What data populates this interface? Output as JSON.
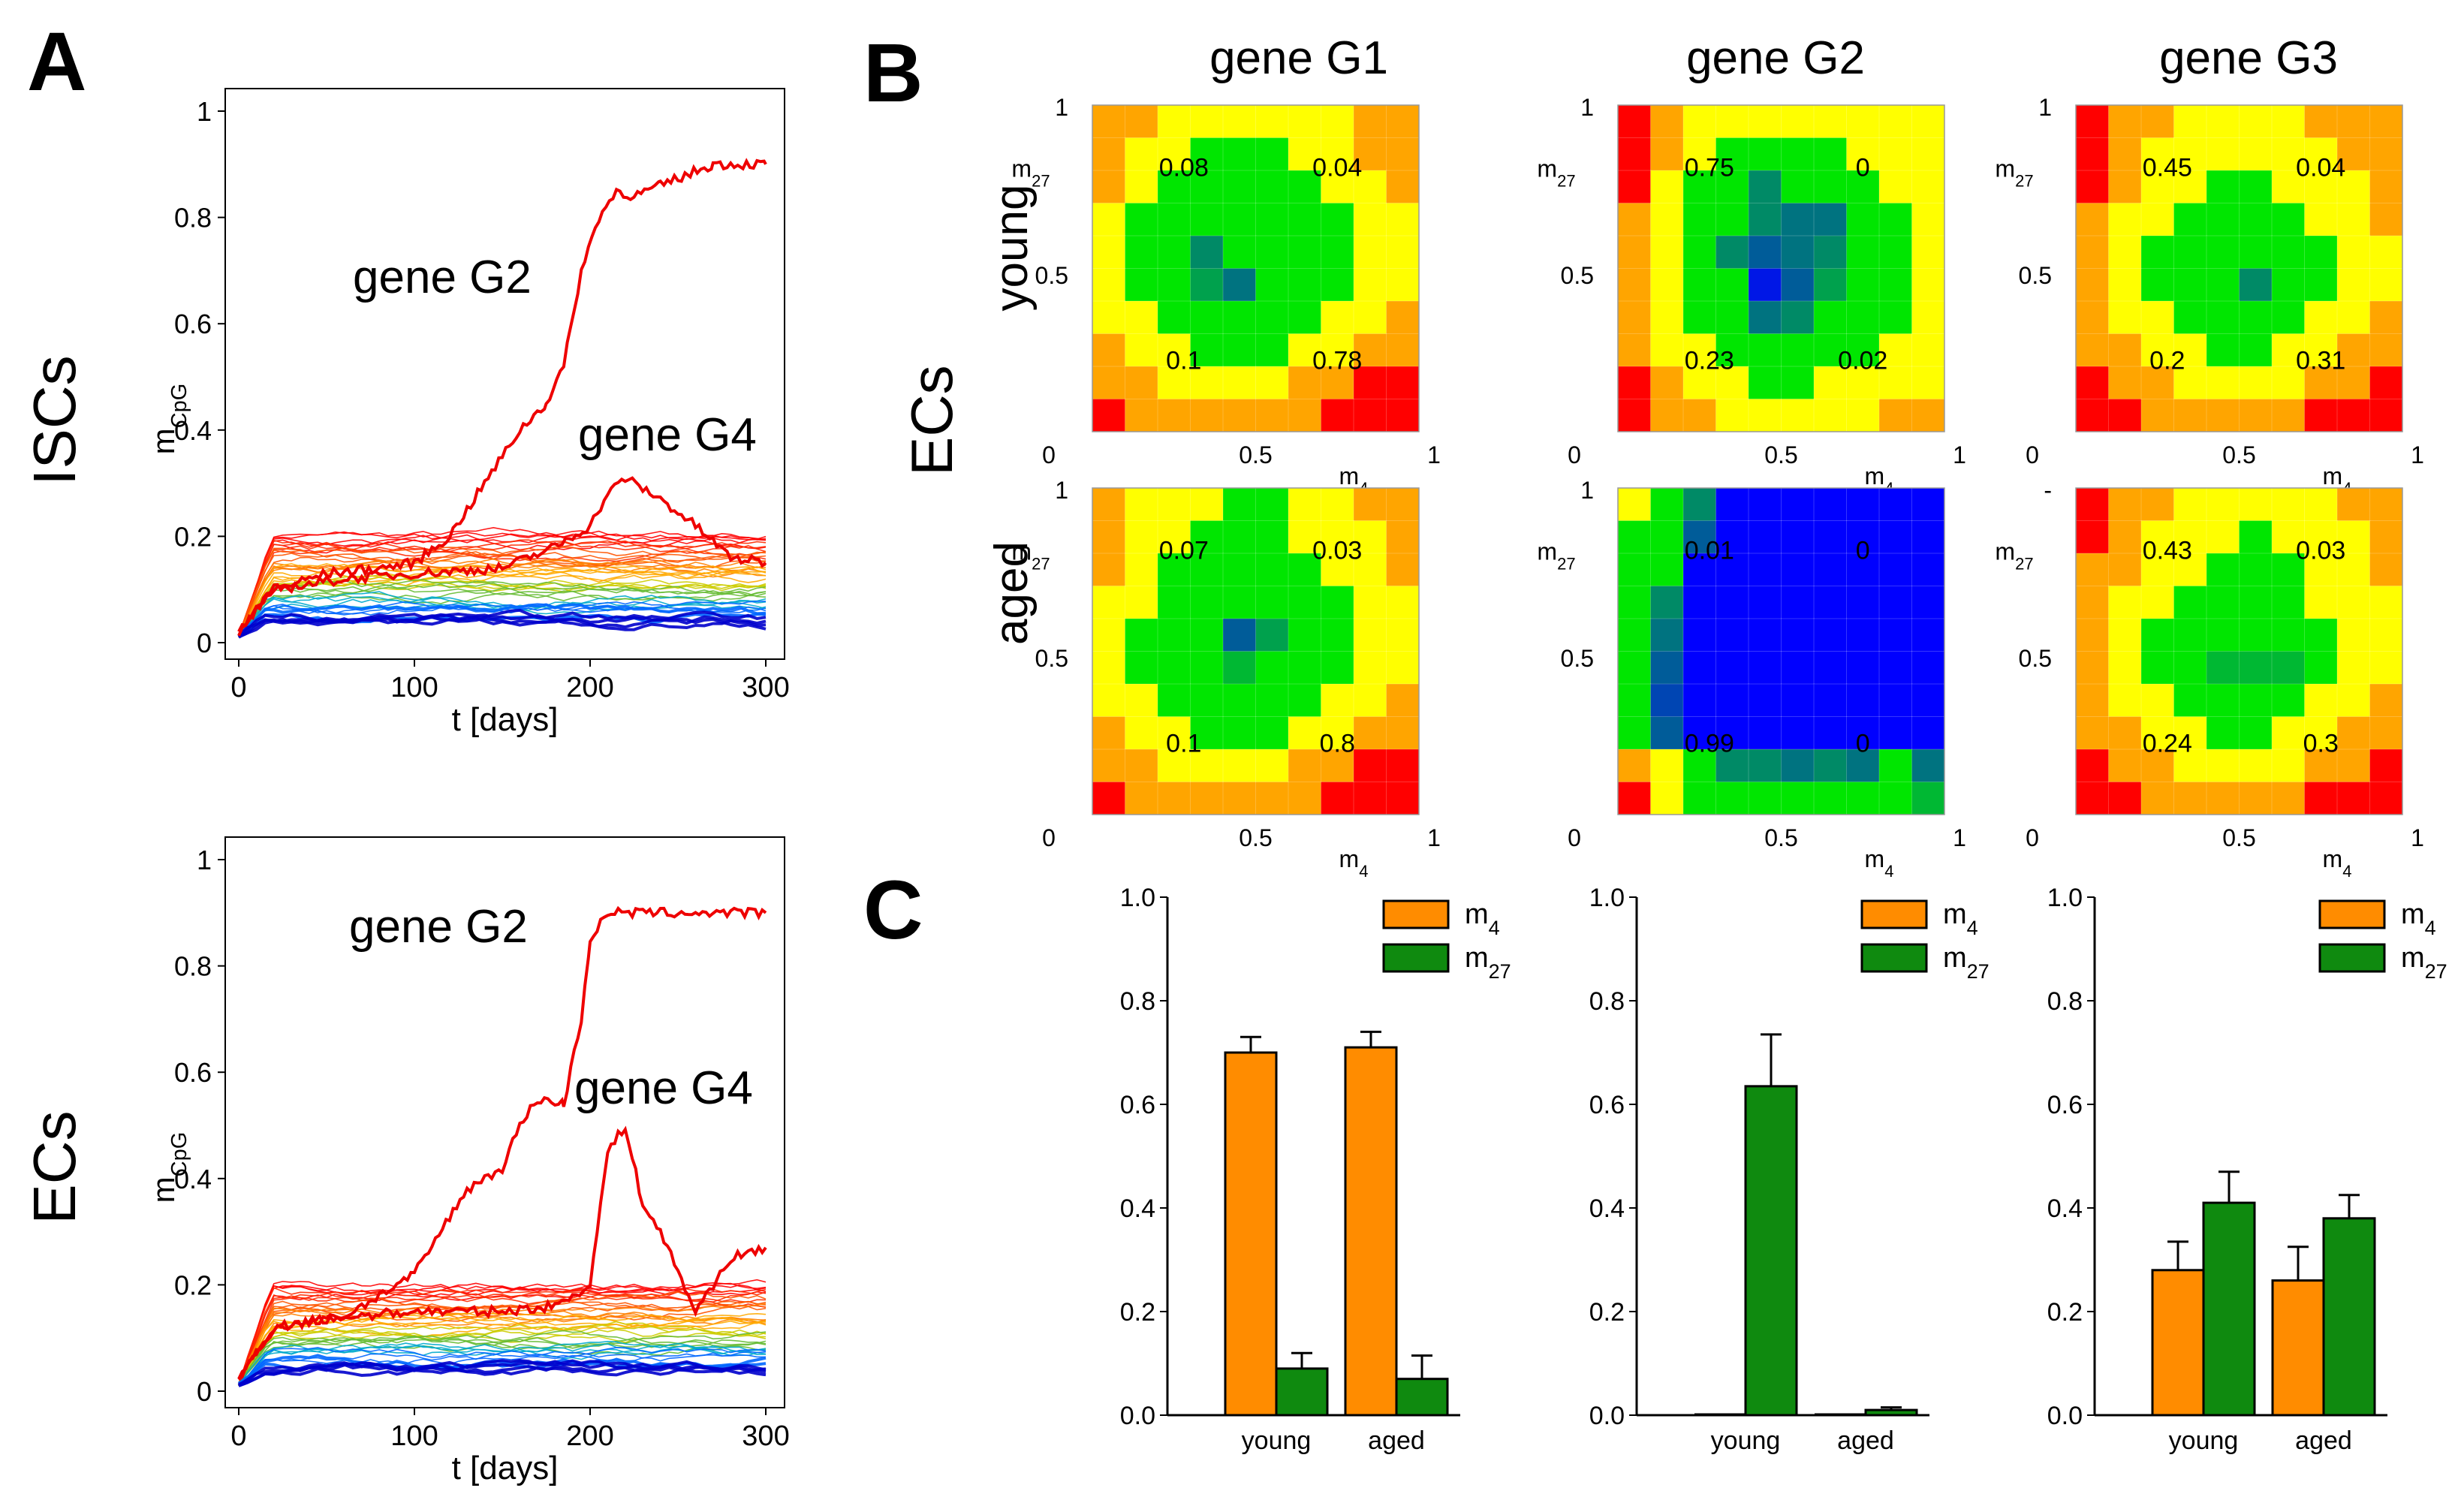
{
  "figure_labels": {
    "A": "A",
    "B": "B",
    "C": "C"
  },
  "panel_a": {
    "rows": [
      {
        "row_label": "ISCs",
        "ylabel": "m",
        "ylabel_sub": "CpG",
        "xlabel": "t [days]",
        "annotations": [
          "gene G2",
          "gene G4"
        ]
      },
      {
        "row_label": "ECs",
        "ylabel": "m",
        "ylabel_sub": "CpG",
        "xlabel": "t [days]",
        "annotations": [
          "gene G2",
          "gene G4"
        ]
      }
    ],
    "x_ticks": [
      "0",
      "100",
      "200",
      "300"
    ],
    "y_ticks": [
      "0",
      "0.2",
      "0.4",
      "0.6",
      "0.8",
      "1"
    ]
  },
  "panel_b": {
    "row_group_label": "ECs",
    "columns": [
      "gene G1",
      "gene G2",
      "gene G3"
    ],
    "rows": [
      "young",
      "aged"
    ],
    "x_axis_label": "m",
    "x_axis_sub": "4",
    "y_axis_label": "m",
    "y_axis_sub": "27",
    "tick_0": "0",
    "tick_half": "0.5",
    "tick_1": "1",
    "g3_aged_top_tick": "-"
  },
  "panel_c": {
    "legend": [
      {
        "label": "m",
        "sub": "4",
        "color": "#ff8c00"
      },
      {
        "label": "m",
        "sub": "27",
        "color": "#0f8a0f"
      }
    ],
    "y_ticks": [
      "0.0",
      "0.2",
      "0.4",
      "0.6",
      "0.8",
      "1.0"
    ],
    "categories": [
      "young",
      "aged"
    ]
  },
  "chart_data": [
    {
      "type": "line",
      "title": "ISCs",
      "xlabel": "t [days]",
      "ylabel": "mCpG",
      "xlim": [
        0,
        300
      ],
      "ylim": [
        0,
        1
      ],
      "series": [
        {
          "name": "gene G2",
          "x": [
            0,
            20,
            50,
            80,
            100,
            120,
            140,
            160,
            175,
            185,
            195,
            205,
            215,
            225,
            240,
            255,
            270,
            285,
            300
          ],
          "values": [
            0.02,
            0.1,
            0.13,
            0.14,
            0.15,
            0.2,
            0.3,
            0.4,
            0.45,
            0.52,
            0.7,
            0.8,
            0.85,
            0.84,
            0.86,
            0.88,
            0.9,
            0.9,
            0.9
          ]
        },
        {
          "name": "gene G4",
          "x": [
            0,
            20,
            60,
            100,
            150,
            180,
            200,
            210,
            220,
            240,
            260,
            280,
            300
          ],
          "values": [
            0.02,
            0.1,
            0.12,
            0.13,
            0.14,
            0.18,
            0.22,
            0.28,
            0.31,
            0.27,
            0.22,
            0.16,
            0.15
          ]
        }
      ],
      "background_series_note": "many additional traces between 0.03 and 0.2"
    },
    {
      "type": "line",
      "title": "ECs",
      "xlabel": "t [days]",
      "ylabel": "mCpG",
      "xlim": [
        0,
        300
      ],
      "ylim": [
        0,
        1
      ],
      "series": [
        {
          "name": "gene G2",
          "x": [
            0,
            20,
            60,
            100,
            130,
            150,
            160,
            170,
            185,
            195,
            200,
            210,
            220,
            250,
            300
          ],
          "values": [
            0.02,
            0.12,
            0.14,
            0.22,
            0.38,
            0.42,
            0.5,
            0.55,
            0.54,
            0.7,
            0.85,
            0.9,
            0.9,
            0.9,
            0.9
          ]
        },
        {
          "name": "gene G4",
          "x": [
            0,
            20,
            60,
            100,
            150,
            180,
            200,
            210,
            220,
            230,
            240,
            260,
            280,
            300
          ],
          "values": [
            0.02,
            0.12,
            0.14,
            0.15,
            0.15,
            0.16,
            0.2,
            0.45,
            0.5,
            0.35,
            0.3,
            0.15,
            0.25,
            0.27
          ]
        }
      ],
      "background_series_note": "many additional traces between 0.03 and 0.2"
    },
    {
      "type": "heatmap",
      "title": "gene G1 young",
      "labels": [
        {
          "text": "0.08",
          "q": "top-left"
        },
        {
          "text": "0.04",
          "q": "top-right"
        },
        {
          "text": "0.1",
          "q": "bottom-left"
        },
        {
          "text": "0.78",
          "q": "bottom-right"
        }
      ],
      "palette": [
        "#0000ff",
        "#00e600",
        "#ffff00",
        "#ffa500",
        "#ff0000"
      ],
      "values": [
        [
          3,
          3,
          2,
          2,
          2,
          2,
          2,
          2,
          3,
          3
        ],
        [
          3,
          2,
          2,
          1,
          1,
          1,
          2,
          2,
          3,
          3
        ],
        [
          3,
          2,
          1,
          1,
          1,
          1,
          1,
          2,
          2,
          3
        ],
        [
          2,
          1,
          1,
          1,
          1,
          1,
          1,
          1,
          2,
          2
        ],
        [
          2,
          1,
          1,
          0.6,
          1,
          1,
          1,
          1,
          2,
          2
        ],
        [
          2,
          1,
          1,
          0.7,
          0.5,
          1,
          1,
          1,
          2,
          2
        ],
        [
          2,
          2,
          1,
          1,
          1,
          1,
          1,
          2,
          2,
          3
        ],
        [
          3,
          2,
          2,
          1,
          1,
          1,
          2,
          2,
          3,
          3
        ],
        [
          3,
          3,
          2,
          2,
          2,
          2,
          3,
          3,
          4,
          4
        ],
        [
          4,
          3,
          3,
          3,
          3,
          3,
          3,
          4,
          4,
          4
        ]
      ]
    },
    {
      "type": "heatmap",
      "title": "gene G2 young",
      "labels": [
        {
          "text": "0.75",
          "q": "top-left"
        },
        {
          "text": "0",
          "q": "top-right"
        },
        {
          "text": "0.23",
          "q": "bottom-left"
        },
        {
          "text": "0.02",
          "q": "bottom-right"
        }
      ],
      "palette": [
        "#0000ff",
        "#00e600",
        "#ffff00",
        "#ffa500",
        "#ff0000"
      ],
      "values": [
        [
          4,
          3,
          2,
          2,
          2,
          2,
          2,
          2,
          2,
          2
        ],
        [
          4,
          3,
          2,
          1,
          1,
          1,
          1,
          2,
          2,
          2
        ],
        [
          4,
          2,
          1,
          1,
          0.6,
          1,
          1,
          1,
          2,
          2
        ],
        [
          3,
          2,
          1,
          1,
          0.6,
          0.5,
          0.5,
          1,
          1,
          2
        ],
        [
          3,
          2,
          1,
          0.6,
          0.4,
          0.5,
          0.6,
          1,
          1,
          2
        ],
        [
          3,
          2,
          1,
          1,
          0.1,
          0.4,
          0.7,
          1,
          1,
          2
        ],
        [
          3,
          2,
          1,
          1,
          0.5,
          0.6,
          1,
          1,
          1,
          2
        ],
        [
          3,
          2,
          2,
          1,
          1,
          1,
          1,
          1,
          2,
          2
        ],
        [
          4,
          3,
          2,
          2,
          1,
          1,
          2,
          2,
          2,
          2
        ],
        [
          4,
          3,
          3,
          2,
          2,
          2,
          2,
          2,
          3,
          3
        ]
      ]
    },
    {
      "type": "heatmap",
      "title": "gene G3 young",
      "labels": [
        {
          "text": "0.45",
          "q": "top-left"
        },
        {
          "text": "0.04",
          "q": "top-right"
        },
        {
          "text": "0.2",
          "q": "bottom-left"
        },
        {
          "text": "0.31",
          "q": "bottom-right"
        }
      ],
      "palette": [
        "#0000ff",
        "#00e600",
        "#ffff00",
        "#ffa500",
        "#ff0000"
      ],
      "values": [
        [
          4,
          3,
          3,
          2,
          2,
          2,
          2,
          3,
          3,
          3
        ],
        [
          4,
          3,
          2,
          2,
          2,
          2,
          2,
          2,
          3,
          3
        ],
        [
          4,
          3,
          2,
          2,
          1,
          1,
          2,
          2,
          2,
          3
        ],
        [
          3,
          2,
          2,
          1,
          1,
          1,
          1,
          2,
          2,
          3
        ],
        [
          3,
          2,
          1,
          1,
          1,
          1,
          1,
          1,
          2,
          2
        ],
        [
          3,
          2,
          1,
          1,
          1,
          0.6,
          1,
          1,
          2,
          2
        ],
        [
          3,
          2,
          2,
          1,
          1,
          1,
          1,
          2,
          2,
          3
        ],
        [
          3,
          3,
          2,
          2,
          1,
          1,
          2,
          2,
          3,
          3
        ],
        [
          4,
          3,
          3,
          2,
          2,
          2,
          2,
          3,
          3,
          4
        ],
        [
          4,
          4,
          3,
          3,
          3,
          3,
          3,
          4,
          4,
          4
        ]
      ]
    },
    {
      "type": "heatmap",
      "title": "gene G1 aged",
      "labels": [
        {
          "text": "0.07",
          "q": "top-left"
        },
        {
          "text": "0.03",
          "q": "top-right"
        },
        {
          "text": "0.1",
          "q": "bottom-left"
        },
        {
          "text": "0.8",
          "q": "bottom-right"
        }
      ],
      "palette": [
        "#0000ff",
        "#00e600",
        "#ffff00",
        "#ffa500",
        "#ff0000"
      ],
      "values": [
        [
          3,
          2,
          2,
          2,
          1,
          1,
          2,
          2,
          3,
          3
        ],
        [
          3,
          2,
          2,
          1,
          1,
          1,
          2,
          2,
          2,
          3
        ],
        [
          3,
          2,
          1,
          1,
          1,
          1,
          1,
          2,
          2,
          3
        ],
        [
          2,
          2,
          1,
          1,
          1,
          1,
          1,
          1,
          2,
          2
        ],
        [
          2,
          1,
          1,
          1,
          0.4,
          0.7,
          1,
          1,
          2,
          2
        ],
        [
          2,
          1,
          1,
          1,
          0.8,
          1,
          1,
          1,
          2,
          2
        ],
        [
          2,
          2,
          1,
          1,
          1,
          1,
          1,
          2,
          2,
          3
        ],
        [
          3,
          2,
          2,
          1,
          1,
          1,
          2,
          2,
          3,
          3
        ],
        [
          3,
          3,
          2,
          2,
          2,
          2,
          3,
          3,
          4,
          4
        ],
        [
          4,
          3,
          3,
          3,
          3,
          3,
          3,
          4,
          4,
          4
        ]
      ]
    },
    {
      "type": "heatmap",
      "title": "gene G2 aged",
      "labels": [
        {
          "text": "0.01",
          "q": "top-left"
        },
        {
          "text": "0",
          "q": "top-right"
        },
        {
          "text": "0.99",
          "q": "bottom-left"
        },
        {
          "text": "0",
          "q": "bottom-right"
        }
      ],
      "palette": [
        "#0000ff",
        "#00e600",
        "#ffff00",
        "#ffa500",
        "#ff0000"
      ],
      "values": [
        [
          2,
          1,
          0.6,
          0,
          0,
          0,
          0,
          0,
          0,
          0
        ],
        [
          1,
          1,
          0.4,
          0,
          0,
          0,
          0,
          0,
          0,
          0
        ],
        [
          1,
          1,
          0,
          0,
          0,
          0,
          0,
          0,
          0,
          0
        ],
        [
          1,
          0.6,
          0,
          0,
          0,
          0,
          0,
          0,
          0,
          0
        ],
        [
          1,
          0.5,
          0,
          0,
          0,
          0,
          0,
          0,
          0,
          0
        ],
        [
          1,
          0.4,
          0,
          0,
          0,
          0,
          0,
          0,
          0,
          0
        ],
        [
          1,
          0.3,
          0,
          0,
          0,
          0,
          0,
          0,
          0,
          0
        ],
        [
          1,
          0.4,
          0,
          0,
          0,
          0,
          0,
          0,
          0,
          0
        ],
        [
          3,
          2,
          1,
          0.6,
          0.6,
          0.5,
          0.6,
          0.5,
          1,
          0.5
        ],
        [
          4,
          2,
          1,
          1,
          1,
          1,
          1,
          1,
          1,
          0.8
        ]
      ]
    },
    {
      "type": "heatmap",
      "title": "gene G3 aged",
      "labels": [
        {
          "text": "0.43",
          "q": "top-left"
        },
        {
          "text": "0.03",
          "q": "top-right"
        },
        {
          "text": "0.24",
          "q": "bottom-left"
        },
        {
          "text": "0.3",
          "q": "bottom-right"
        }
      ],
      "palette": [
        "#0000ff",
        "#00e600",
        "#ffff00",
        "#ffa500",
        "#ff0000"
      ],
      "values": [
        [
          4,
          3,
          3,
          2,
          2,
          2,
          2,
          2,
          3,
          3
        ],
        [
          4,
          3,
          2,
          2,
          2,
          1,
          2,
          2,
          2,
          3
        ],
        [
          3,
          3,
          2,
          2,
          1,
          1,
          1,
          2,
          2,
          3
        ],
        [
          3,
          2,
          2,
          1,
          1,
          1,
          1,
          2,
          2,
          2
        ],
        [
          3,
          2,
          1,
          1,
          1,
          1,
          1,
          1,
          2,
          2
        ],
        [
          3,
          2,
          1,
          1,
          0.8,
          0.8,
          0.8,
          1,
          2,
          2
        ],
        [
          3,
          2,
          2,
          1,
          1,
          1,
          1,
          2,
          2,
          3
        ],
        [
          3,
          3,
          2,
          2,
          1,
          1,
          2,
          2,
          3,
          3
        ],
        [
          4,
          3,
          3,
          2,
          2,
          2,
          2,
          3,
          3,
          4
        ],
        [
          4,
          4,
          3,
          3,
          3,
          3,
          3,
          4,
          4,
          4
        ]
      ]
    },
    {
      "type": "bar",
      "title": "gene G1",
      "categories": [
        "young",
        "aged"
      ],
      "ylim": [
        0,
        1
      ],
      "series": [
        {
          "name": "m4",
          "values": [
            0.7,
            0.71
          ],
          "errors": [
            0.03,
            0.03
          ]
        },
        {
          "name": "m27",
          "values": [
            0.09,
            0.07
          ],
          "errors": [
            0.03,
            0.045
          ]
        }
      ]
    },
    {
      "type": "bar",
      "title": "gene G2",
      "categories": [
        "young",
        "aged"
      ],
      "ylim": [
        0,
        1
      ],
      "series": [
        {
          "name": "m4",
          "values": [
            0.0,
            0.0
          ],
          "errors": [
            0.0,
            0.0
          ]
        },
        {
          "name": "m27",
          "values": [
            0.635,
            0.01
          ],
          "errors": [
            0.1,
            0.005
          ]
        }
      ]
    },
    {
      "type": "bar",
      "title": "gene G3",
      "categories": [
        "young",
        "aged"
      ],
      "ylim": [
        0,
        1
      ],
      "series": [
        {
          "name": "m4",
          "values": [
            0.28,
            0.26
          ],
          "errors": [
            0.055,
            0.065
          ]
        },
        {
          "name": "m27",
          "values": [
            0.41,
            0.38
          ],
          "errors": [
            0.06,
            0.045
          ]
        }
      ]
    }
  ]
}
